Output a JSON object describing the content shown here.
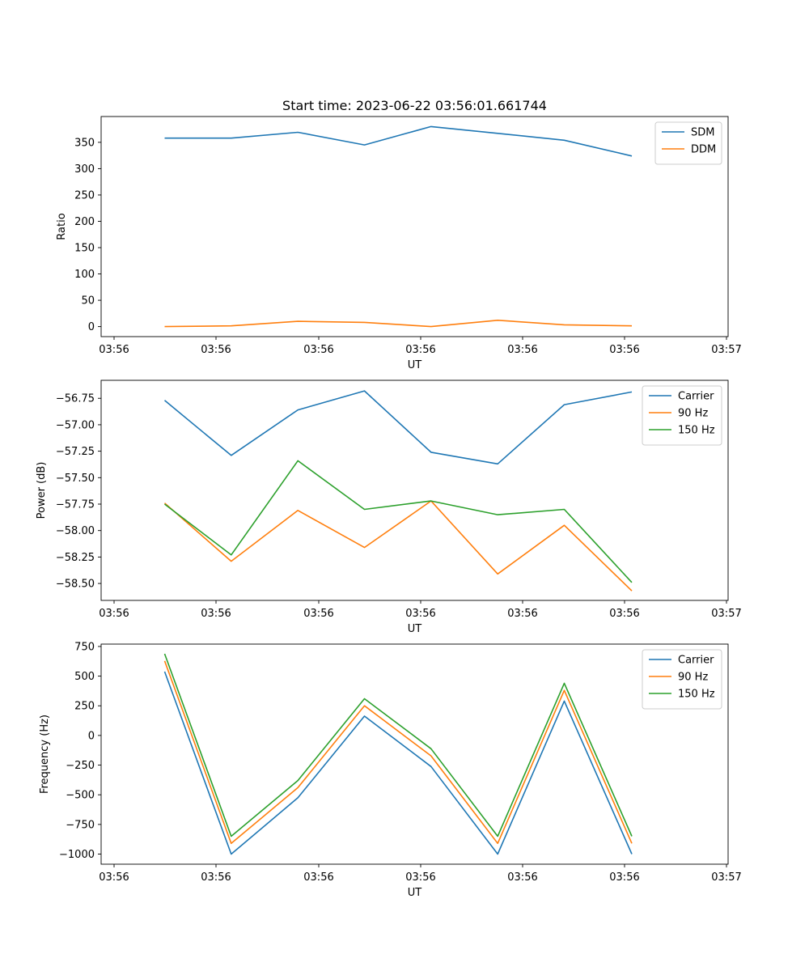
{
  "figure": {
    "title": "Start time: 2023-06-22 03:56:01.661744"
  },
  "chart_data": [
    {
      "type": "line",
      "xlabel": "UT",
      "ylabel": "Ratio",
      "x_tick_labels": [
        "03:56",
        "03:56",
        "03:56",
        "03:56",
        "03:56",
        "03:56",
        "03:57"
      ],
      "ylim": [
        -19,
        399
      ],
      "y_ticks": [
        0,
        50,
        100,
        150,
        200,
        250,
        300,
        350
      ],
      "legend_position": "top-right",
      "series": [
        {
          "name": "SDM",
          "color": "#1f77b4",
          "values": [
            358,
            358,
            369,
            345,
            380,
            367,
            354,
            324
          ]
        },
        {
          "name": "DDM",
          "color": "#ff7f0e",
          "values": [
            0,
            1.5,
            10,
            8,
            0,
            12,
            3.5,
            1.5
          ]
        }
      ]
    },
    {
      "type": "line",
      "xlabel": "UT",
      "ylabel": "Power (dB)",
      "x_tick_labels": [
        "03:56",
        "03:56",
        "03:56",
        "03:56",
        "03:56",
        "03:56",
        "03:57"
      ],
      "ylim": [
        -58.66,
        -56.58
      ],
      "y_ticks": [
        -56.75,
        -57.0,
        -57.25,
        -57.5,
        -57.75,
        -58.0,
        -58.25,
        -58.5
      ],
      "y_tick_labels": [
        "−56.75",
        "−57.00",
        "−57.25",
        "−57.50",
        "−57.75",
        "−58.00",
        "−58.25",
        "−58.50"
      ],
      "legend_position": "top-right",
      "series": [
        {
          "name": "Carrier",
          "color": "#1f77b4",
          "values": [
            -56.77,
            -57.29,
            -56.86,
            -56.68,
            -57.26,
            -57.37,
            -56.81,
            -56.69
          ]
        },
        {
          "name": "90 Hz",
          "color": "#ff7f0e",
          "values": [
            -57.74,
            -58.29,
            -57.81,
            -58.16,
            -57.72,
            -58.41,
            -57.95,
            -58.57
          ]
        },
        {
          "name": "150 Hz",
          "color": "#2ca02c",
          "values": [
            -57.75,
            -58.23,
            -57.34,
            -57.8,
            -57.72,
            -57.85,
            -57.8,
            -58.49
          ]
        }
      ]
    },
    {
      "type": "line",
      "xlabel": "UT",
      "ylabel": "Frequency (Hz)",
      "x_tick_labels": [
        "03:56",
        "03:56",
        "03:56",
        "03:56",
        "03:56",
        "03:56",
        "03:57"
      ],
      "ylim": [
        -1085,
        770
      ],
      "y_ticks": [
        750,
        500,
        250,
        0,
        -250,
        -500,
        -750,
        -1000
      ],
      "y_tick_labels": [
        "750",
        "500",
        "250",
        "0",
        "−250",
        "−500",
        "−750",
        "−1000"
      ],
      "legend_position": "top-right",
      "series": [
        {
          "name": "Carrier",
          "color": "#1f77b4",
          "values": [
            538,
            -1000,
            -525,
            163,
            -262,
            -1000,
            290,
            -1000
          ]
        },
        {
          "name": "90 Hz",
          "color": "#ff7f0e",
          "values": [
            628,
            -910,
            -440,
            250,
            -172,
            -910,
            380,
            -910
          ]
        },
        {
          "name": "150 Hz",
          "color": "#2ca02c",
          "values": [
            688,
            -850,
            -380,
            310,
            -112,
            -850,
            440,
            -850
          ]
        }
      ]
    }
  ]
}
